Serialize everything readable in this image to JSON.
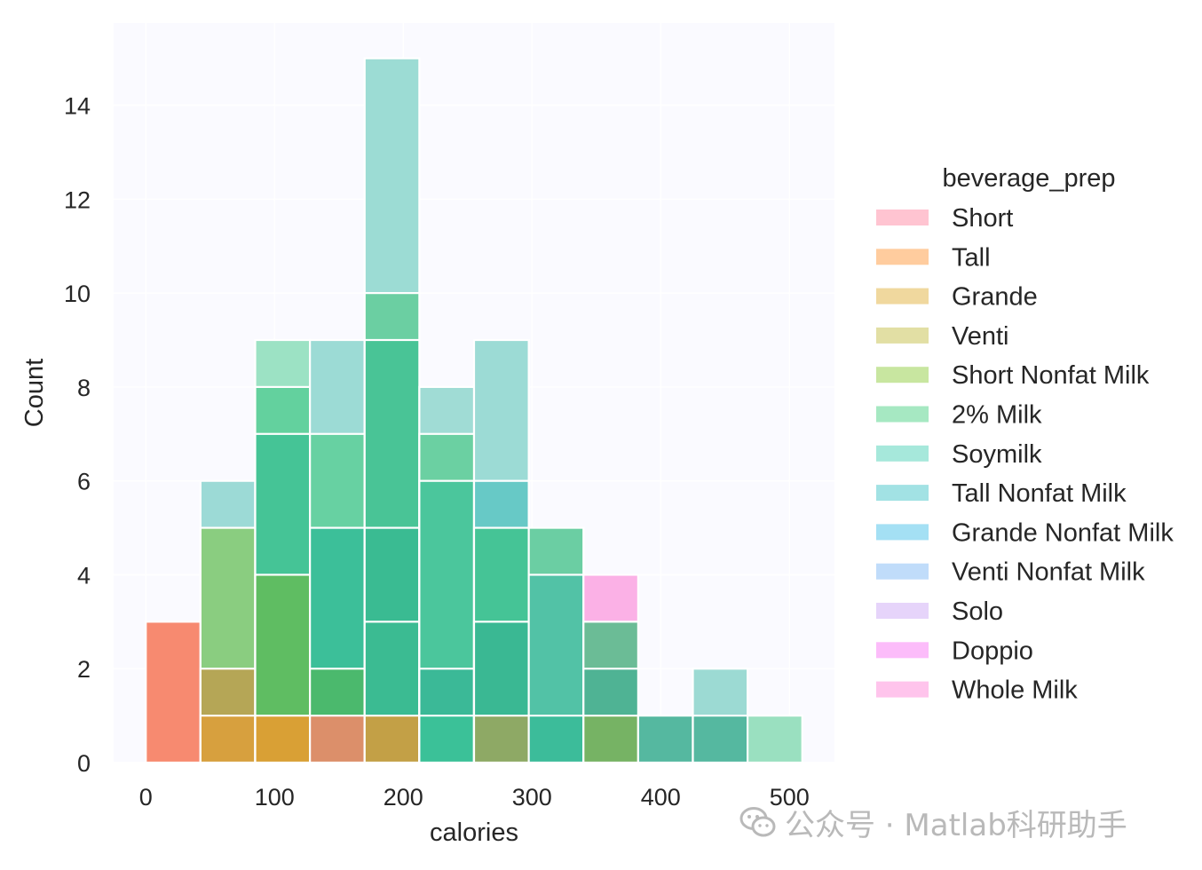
{
  "chart_data": {
    "type": "histogram",
    "xlabel": "calories",
    "ylabel": "Count",
    "xlim": [
      -25,
      535
    ],
    "ylim": [
      0,
      15.75
    ],
    "xticks": [
      0,
      100,
      200,
      300,
      400,
      500
    ],
    "yticks": [
      0,
      2,
      4,
      6,
      8,
      10,
      12,
      14
    ],
    "bin_edges": [
      0,
      42.5,
      85,
      127.5,
      170,
      212.5,
      255,
      297.5,
      340,
      382.5,
      425,
      467.5,
      510
    ],
    "grid": true,
    "background": "#fafaff",
    "legend": {
      "title": "beverage_prep",
      "placement": "right",
      "entries": [
        {
          "name": "Short",
          "color": "#ffc4d1"
        },
        {
          "name": "Tall",
          "color": "#ffcc9e"
        },
        {
          "name": "Grande",
          "color": "#f0d89e"
        },
        {
          "name": "Venti",
          "color": "#e2dfa4"
        },
        {
          "name": "Short Nonfat Milk",
          "color": "#c8e6a0"
        },
        {
          "name": "2% Milk",
          "color": "#a6e8c2"
        },
        {
          "name": "Soymilk",
          "color": "#a6e8db"
        },
        {
          "name": "Tall Nonfat Milk",
          "color": "#a2e2e4"
        },
        {
          "name": "Grande Nonfat Milk",
          "color": "#a4e0f4"
        },
        {
          "name": "Venti Nonfat Milk",
          "color": "#c0dcfa"
        },
        {
          "name": "Solo",
          "color": "#e6d4fa"
        },
        {
          "name": "Doppio",
          "color": "#fcbcfa"
        },
        {
          "name": "Whole Milk",
          "color": "#ffc4ec"
        }
      ]
    },
    "bars": [
      {
        "bin": 0,
        "value": 3,
        "color": "#f78a70"
      },
      {
        "bin": 1,
        "value": 6,
        "color": "#9cdad6"
      },
      {
        "bin": 1,
        "value": 5,
        "color": "#8acd80"
      },
      {
        "bin": 1,
        "value": 2,
        "color": "#b5a656"
      },
      {
        "bin": 1,
        "value": 1,
        "color": "#d7a03e"
      },
      {
        "bin": 2,
        "value": 9,
        "color": "#9ce2c4"
      },
      {
        "bin": 2,
        "value": 8,
        "color": "#63d19e"
      },
      {
        "bin": 2,
        "value": 7,
        "color": "#45c496"
      },
      {
        "bin": 2,
        "value": 4,
        "color": "#5fbd62"
      },
      {
        "bin": 2,
        "value": 1,
        "color": "#d9a035"
      },
      {
        "bin": 3,
        "value": 9,
        "color": "#9cdbd5"
      },
      {
        "bin": 3,
        "value": 7,
        "color": "#67d1a2"
      },
      {
        "bin": 3,
        "value": 5,
        "color": "#3cbf99"
      },
      {
        "bin": 3,
        "value": 2,
        "color": "#4bb96d"
      },
      {
        "bin": 3,
        "value": 1,
        "color": "#dc8f6a"
      },
      {
        "bin": 4,
        "value": 15,
        "color": "#9cdcd4"
      },
      {
        "bin": 4,
        "value": 10,
        "color": "#6bcfa2"
      },
      {
        "bin": 4,
        "value": 9,
        "color": "#49c496"
      },
      {
        "bin": 4,
        "value": 5,
        "color": "#3abb92"
      },
      {
        "bin": 4,
        "value": 3,
        "color": "#3bbb92"
      },
      {
        "bin": 4,
        "value": 1,
        "color": "#c3a046"
      },
      {
        "bin": 5,
        "value": 8,
        "color": "#a0dcd5"
      },
      {
        "bin": 5,
        "value": 7,
        "color": "#6bd0a2"
      },
      {
        "bin": 5,
        "value": 6,
        "color": "#4bc69c"
      },
      {
        "bin": 5,
        "value": 2,
        "color": "#3bb997"
      },
      {
        "bin": 5,
        "value": 1,
        "color": "#3bc198"
      },
      {
        "bin": 6,
        "value": 9,
        "color": "#9cdbd5"
      },
      {
        "bin": 6,
        "value": 6,
        "color": "#67c9c6"
      },
      {
        "bin": 6,
        "value": 5,
        "color": "#45c496"
      },
      {
        "bin": 6,
        "value": 3,
        "color": "#3ab893"
      },
      {
        "bin": 6,
        "value": 1,
        "color": "#8ea965"
      },
      {
        "bin": 7,
        "value": 5,
        "color": "#6bcea3"
      },
      {
        "bin": 7,
        "value": 4,
        "color": "#52c2a6"
      },
      {
        "bin": 7,
        "value": 1,
        "color": "#3cbc9a"
      },
      {
        "bin": 8,
        "value": 4,
        "color": "#fbb1e6"
      },
      {
        "bin": 8,
        "value": 3,
        "color": "#6bbc96"
      },
      {
        "bin": 8,
        "value": 2,
        "color": "#4fb394"
      },
      {
        "bin": 8,
        "value": 1,
        "color": "#76b364"
      },
      {
        "bin": 9,
        "value": 1,
        "color": "#55b8a0"
      },
      {
        "bin": 10,
        "value": 2,
        "color": "#9cdad3"
      },
      {
        "bin": 10,
        "value": 1,
        "color": "#55b8a0"
      },
      {
        "bin": 11,
        "value": 1,
        "color": "#9ae0c0"
      }
    ]
  },
  "watermark": {
    "icon": "wechat-icon",
    "text": "公众号 · Matlab科研助手"
  }
}
